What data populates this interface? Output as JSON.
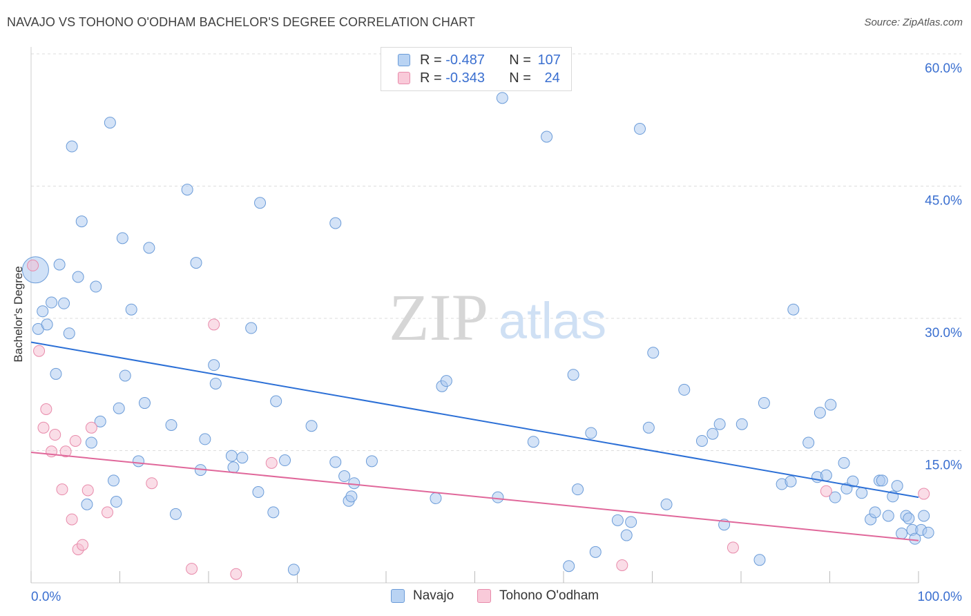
{
  "title": "NAVAJO VS TOHONO O'ODHAM BACHELOR'S DEGREE CORRELATION CHART",
  "source": "Source: ZipAtlas.com",
  "watermark": {
    "zip": "ZIP",
    "atlas": "atlas"
  },
  "legend": {
    "navajo": {
      "r_label": "R = ",
      "r_value": "-0.487",
      "n_label": "N = ",
      "n_value": "107"
    },
    "tohono": {
      "r_label": "R = ",
      "r_value": "-0.343",
      "n_label": "N = ",
      "n_value": "24"
    }
  },
  "colors": {
    "navajo_fill": "#a9c8f0",
    "navajo_stroke": "#6a9bd8",
    "navajo_line": "#2b6fd6",
    "tohono_fill": "#f6bcd0",
    "tohono_stroke": "#e88aaa",
    "tohono_line": "#e0679a",
    "axis_text": "#3a6fd0",
    "grid": "#dddddd"
  },
  "chart_data": {
    "type": "scatter",
    "title": "NAVAJO VS TOHONO O'ODHAM BACHELOR'S DEGREE CORRELATION CHART",
    "ylabel": "Bachelor's Degree",
    "xlabel": "",
    "xlim": [
      0,
      100
    ],
    "ylim": [
      0,
      60
    ],
    "x_tick_labels": [
      "0.0%",
      "100.0%"
    ],
    "y_ticks": [
      15,
      30,
      45,
      60
    ],
    "y_tick_labels": [
      "15.0%",
      "30.0%",
      "45.0%",
      "60.0%"
    ],
    "grid": true,
    "legend_position": "bottom-center",
    "series": [
      {
        "name": "Navajo",
        "r": -0.487,
        "n": 107,
        "trend": [
          [
            0,
            27.3
          ],
          [
            100,
            9.7
          ]
        ],
        "points": [
          [
            0.5,
            35.5
          ],
          [
            0.8,
            28.8
          ],
          [
            1.3,
            30.8
          ],
          [
            1.8,
            29.3
          ],
          [
            2.3,
            31.8
          ],
          [
            2.8,
            23.7
          ],
          [
            3.2,
            36.1
          ],
          [
            3.7,
            31.7
          ],
          [
            4.3,
            28.3
          ],
          [
            4.6,
            49.5
          ],
          [
            5.3,
            34.7
          ],
          [
            5.7,
            41.0
          ],
          [
            6.3,
            8.9
          ],
          [
            6.8,
            15.9
          ],
          [
            7.3,
            33.6
          ],
          [
            7.8,
            18.3
          ],
          [
            8.9,
            52.2
          ],
          [
            9.3,
            11.6
          ],
          [
            9.6,
            9.2
          ],
          [
            9.9,
            19.8
          ],
          [
            10.3,
            39.1
          ],
          [
            10.6,
            23.5
          ],
          [
            11.3,
            31.0
          ],
          [
            12.1,
            13.8
          ],
          [
            12.8,
            20.4
          ],
          [
            13.3,
            38.0
          ],
          [
            15.8,
            17.9
          ],
          [
            16.3,
            7.8
          ],
          [
            17.6,
            44.6
          ],
          [
            18.6,
            36.3
          ],
          [
            19.1,
            12.8
          ],
          [
            19.6,
            16.3
          ],
          [
            20.6,
            24.7
          ],
          [
            20.8,
            22.6
          ],
          [
            22.6,
            14.4
          ],
          [
            22.8,
            13.1
          ],
          [
            23.8,
            14.2
          ],
          [
            24.8,
            28.9
          ],
          [
            25.6,
            10.3
          ],
          [
            25.8,
            43.1
          ],
          [
            27.3,
            8.0
          ],
          [
            27.6,
            20.6
          ],
          [
            28.6,
            13.9
          ],
          [
            29.6,
            1.5
          ],
          [
            31.6,
            17.8
          ],
          [
            34.3,
            40.8
          ],
          [
            34.3,
            13.7
          ],
          [
            35.3,
            12.1
          ],
          [
            35.8,
            9.3
          ],
          [
            36.1,
            9.8
          ],
          [
            36.4,
            11.3
          ],
          [
            38.4,
            13.8
          ],
          [
            45.6,
            9.6
          ],
          [
            46.3,
            22.3
          ],
          [
            46.8,
            22.9
          ],
          [
            52.6,
            9.7
          ],
          [
            53.1,
            55.0
          ],
          [
            56.6,
            16.0
          ],
          [
            58.1,
            50.6
          ],
          [
            60.6,
            1.9
          ],
          [
            61.1,
            23.6
          ],
          [
            61.6,
            10.6
          ],
          [
            63.1,
            17.0
          ],
          [
            63.6,
            3.5
          ],
          [
            66.1,
            7.1
          ],
          [
            67.1,
            5.4
          ],
          [
            67.6,
            6.9
          ],
          [
            68.6,
            51.5
          ],
          [
            69.6,
            17.6
          ],
          [
            70.1,
            26.1
          ],
          [
            71.6,
            8.9
          ],
          [
            73.6,
            21.9
          ],
          [
            75.6,
            16.1
          ],
          [
            76.8,
            16.9
          ],
          [
            77.6,
            18.0
          ],
          [
            78.1,
            6.6
          ],
          [
            80.1,
            18.0
          ],
          [
            82.1,
            2.6
          ],
          [
            82.6,
            20.4
          ],
          [
            84.6,
            11.2
          ],
          [
            85.6,
            11.5
          ],
          [
            85.9,
            31.0
          ],
          [
            87.6,
            15.9
          ],
          [
            88.6,
            12.0
          ],
          [
            88.9,
            19.3
          ],
          [
            89.6,
            12.2
          ],
          [
            90.1,
            20.2
          ],
          [
            90.6,
            9.7
          ],
          [
            91.6,
            13.6
          ],
          [
            91.9,
            10.7
          ],
          [
            92.6,
            11.5
          ],
          [
            93.6,
            10.2
          ],
          [
            94.6,
            7.2
          ],
          [
            95.1,
            8.0
          ],
          [
            95.6,
            11.6
          ],
          [
            95.9,
            11.6
          ],
          [
            96.6,
            7.6
          ],
          [
            97.1,
            9.8
          ],
          [
            97.6,
            11.0
          ],
          [
            98.1,
            5.6
          ],
          [
            98.6,
            7.6
          ],
          [
            98.9,
            7.3
          ],
          [
            99.3,
            6.0
          ],
          [
            99.6,
            5.0
          ],
          [
            100.3,
            6.0
          ],
          [
            100.6,
            7.6
          ],
          [
            101.1,
            5.7
          ]
        ]
      },
      {
        "name": "Tohono O'odham",
        "r": -0.343,
        "n": 24,
        "trend": [
          [
            0,
            14.8
          ],
          [
            100,
            4.8
          ]
        ],
        "points": [
          [
            0.2,
            36.0
          ],
          [
            0.9,
            26.3
          ],
          [
            1.4,
            17.6
          ],
          [
            1.7,
            19.7
          ],
          [
            2.3,
            14.9
          ],
          [
            2.7,
            16.8
          ],
          [
            3.5,
            10.6
          ],
          [
            3.9,
            14.9
          ],
          [
            4.6,
            7.2
          ],
          [
            5.0,
            16.1
          ],
          [
            5.3,
            3.8
          ],
          [
            5.8,
            4.3
          ],
          [
            6.4,
            10.5
          ],
          [
            6.8,
            17.6
          ],
          [
            8.6,
            8.0
          ],
          [
            13.6,
            11.3
          ],
          [
            18.1,
            1.6
          ],
          [
            20.6,
            29.3
          ],
          [
            23.1,
            1.0
          ],
          [
            27.1,
            13.6
          ],
          [
            66.6,
            2.0
          ],
          [
            79.1,
            4.0
          ],
          [
            89.6,
            10.4
          ],
          [
            100.6,
            10.1
          ]
        ]
      }
    ]
  },
  "bottom_legend": {
    "navajo": "Navajo",
    "tohono": "Tohono O'odham"
  }
}
